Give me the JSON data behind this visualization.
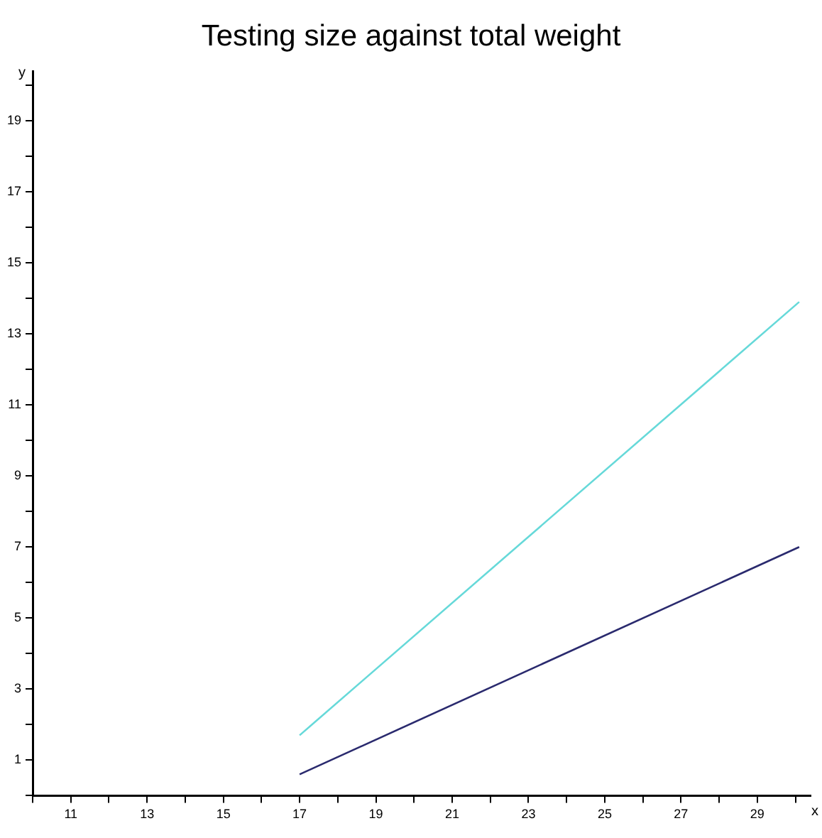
{
  "chart_data": {
    "type": "line",
    "title": "Testing size against total weight",
    "xlabel": "x",
    "ylabel": "y",
    "xlim": [
      10,
      30.4
    ],
    "ylim": [
      0,
      20.4
    ],
    "xticks": [
      {
        "value": 10,
        "label": null
      },
      11,
      {
        "value": 12,
        "label": null
      },
      13,
      {
        "value": 14,
        "label": null
      },
      15,
      {
        "value": 16,
        "label": null
      },
      17,
      {
        "value": 18,
        "label": null
      },
      19,
      {
        "value": 20,
        "label": null
      },
      21,
      {
        "value": 22,
        "label": null
      },
      23,
      {
        "value": 24,
        "label": null
      },
      25,
      {
        "value": 26,
        "label": null
      },
      27,
      {
        "value": 28,
        "label": null
      },
      29,
      {
        "value": 30,
        "label": null
      }
    ],
    "yticks": [
      {
        "value": 0,
        "label": null
      },
      1,
      {
        "value": 2,
        "label": null
      },
      3,
      {
        "value": 4,
        "label": null
      },
      5,
      {
        "value": 6,
        "label": null
      },
      7,
      {
        "value": 8,
        "label": null
      },
      9,
      {
        "value": 10,
        "label": null
      },
      11,
      {
        "value": 12,
        "label": null
      },
      13,
      {
        "value": 14,
        "label": null
      },
      15,
      {
        "value": 16,
        "label": null
      },
      17,
      {
        "value": 18,
        "label": null
      },
      19,
      {
        "value": 20,
        "label": null
      }
    ],
    "x": [
      17,
      30.1
    ],
    "series": [
      {
        "color": "#66d9d9",
        "values": [
          1.7,
          13.9
        ]
      },
      {
        "color": "#2a2a6e",
        "values": [
          0.6,
          7.0
        ]
      }
    ],
    "grid": false,
    "legend": false,
    "marker": "none",
    "line_style": "solid"
  }
}
